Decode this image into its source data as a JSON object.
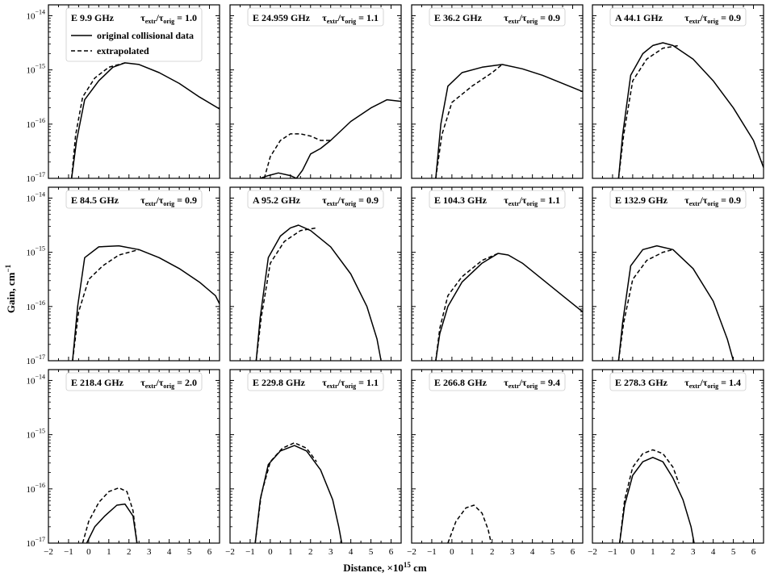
{
  "figure": {
    "ylabel": "Gain, cm",
    "ylabel_sup": "−1",
    "xlabel": "Distance, ×10",
    "xlabel_sup": "15",
    "xlabel_unit": " cm",
    "line_color": "#000000"
  },
  "legend": {
    "original_label": "original collisional data",
    "extrapolated_label": "extrapolated"
  },
  "axes": {
    "xlim": [
      -2,
      6.5
    ],
    "ylim_log10": [
      -17,
      -13.8
    ],
    "x_ticks": [
      "−2",
      "−1",
      "0",
      "1",
      "2",
      "3",
      "4",
      "5",
      "6"
    ],
    "y_ticks": [
      {
        "base": "10",
        "exp": "−14"
      },
      {
        "base": "10",
        "exp": "−15"
      },
      {
        "base": "10",
        "exp": "−16"
      },
      {
        "base": "10",
        "exp": "−17"
      }
    ]
  },
  "chart_data": [
    {
      "type": "line",
      "title_prefix": "E",
      "freq": "9.9 GHz",
      "ratio": "1.0",
      "series": [
        {
          "name": "original collisional data",
          "style": "solid",
          "points": [
            [
              -0.85,
              -17
            ],
            [
              -0.6,
              -16.3
            ],
            [
              -0.2,
              -15.55
            ],
            [
              0.5,
              -15.2
            ],
            [
              1.2,
              -14.95
            ],
            [
              1.8,
              -14.87
            ],
            [
              2.5,
              -14.9
            ],
            [
              3.5,
              -15.05
            ],
            [
              4.5,
              -15.25
            ],
            [
              5.5,
              -15.5
            ],
            [
              6.5,
              -15.72
            ]
          ]
        },
        {
          "name": "extrapolated",
          "style": "dashed",
          "points": [
            [
              -0.85,
              -17
            ],
            [
              -0.65,
              -16.2
            ],
            [
              -0.3,
              -15.5
            ],
            [
              0.3,
              -15.15
            ],
            [
              1.0,
              -14.95
            ],
            [
              1.8,
              -14.87
            ]
          ]
        }
      ]
    },
    {
      "type": "line",
      "title_prefix": "E",
      "freq": "24.959 GHz",
      "ratio": "1.1",
      "series": [
        {
          "name": "original collisional data",
          "style": "solid",
          "points": [
            [
              -0.5,
              -17
            ],
            [
              -0.1,
              -16.95
            ],
            [
              0.4,
              -16.9
            ],
            [
              1.0,
              -16.95
            ],
            [
              1.3,
              -17
            ],
            [
              1.6,
              -16.85
            ],
            [
              2.0,
              -16.55
            ],
            [
              2.5,
              -16.45
            ],
            [
              3.0,
              -16.3
            ],
            [
              4.0,
              -15.95
            ],
            [
              5.0,
              -15.7
            ],
            [
              5.8,
              -15.55
            ],
            [
              6.5,
              -15.58
            ]
          ]
        },
        {
          "name": "extrapolated",
          "style": "dashed",
          "points": [
            [
              -0.3,
              -17
            ],
            [
              0,
              -16.6
            ],
            [
              0.5,
              -16.3
            ],
            [
              1.0,
              -16.18
            ],
            [
              1.5,
              -16.18
            ],
            [
              2.0,
              -16.22
            ],
            [
              2.5,
              -16.3
            ],
            [
              3.0,
              -16.3
            ]
          ]
        }
      ]
    },
    {
      "type": "line",
      "title_prefix": "E",
      "freq": "36.2 GHz",
      "ratio": "0.9",
      "series": [
        {
          "name": "original collisional data",
          "style": "solid",
          "points": [
            [
              -0.8,
              -17
            ],
            [
              -0.55,
              -16
            ],
            [
              -0.2,
              -15.3
            ],
            [
              0.5,
              -15.05
            ],
            [
              1.5,
              -14.95
            ],
            [
              2.5,
              -14.9
            ],
            [
              3.5,
              -14.98
            ],
            [
              4.5,
              -15.1
            ],
            [
              5.5,
              -15.25
            ],
            [
              6.5,
              -15.4
            ]
          ]
        },
        {
          "name": "extrapolated",
          "style": "dashed",
          "points": [
            [
              -0.8,
              -17
            ],
            [
              -0.5,
              -16.2
            ],
            [
              0,
              -15.6
            ],
            [
              1.0,
              -15.3
            ],
            [
              2.0,
              -15.05
            ],
            [
              2.5,
              -14.9
            ]
          ]
        }
      ]
    },
    {
      "type": "line",
      "title_prefix": "A",
      "freq": "44.1 GHz",
      "ratio": "0.9",
      "series": [
        {
          "name": "original collisional data",
          "style": "solid",
          "points": [
            [
              -0.7,
              -17
            ],
            [
              -0.5,
              -16.2
            ],
            [
              -0.1,
              -15.1
            ],
            [
              0.5,
              -14.7
            ],
            [
              1.0,
              -14.55
            ],
            [
              1.5,
              -14.5
            ],
            [
              2.0,
              -14.55
            ],
            [
              3.0,
              -14.8
            ],
            [
              4.0,
              -15.2
            ],
            [
              5.0,
              -15.7
            ],
            [
              6.0,
              -16.3
            ],
            [
              6.5,
              -16.8
            ]
          ]
        },
        {
          "name": "extrapolated",
          "style": "dashed",
          "points": [
            [
              -0.7,
              -17
            ],
            [
              -0.45,
              -16.2
            ],
            [
              0,
              -15.2
            ],
            [
              0.7,
              -14.8
            ],
            [
              1.5,
              -14.6
            ],
            [
              2.3,
              -14.55
            ]
          ]
        }
      ]
    },
    {
      "type": "line",
      "title_prefix": "E",
      "freq": "84.5 GHz",
      "ratio": "0.9",
      "series": [
        {
          "name": "original collisional data",
          "style": "solid",
          "points": [
            [
              -0.8,
              -17
            ],
            [
              -0.55,
              -16
            ],
            [
              -0.2,
              -15.1
            ],
            [
              0.5,
              -14.9
            ],
            [
              1.5,
              -14.88
            ],
            [
              2.5,
              -14.95
            ],
            [
              3.5,
              -15.1
            ],
            [
              4.5,
              -15.3
            ],
            [
              5.5,
              -15.55
            ],
            [
              6.3,
              -15.8
            ],
            [
              6.5,
              -15.95
            ]
          ]
        },
        {
          "name": "extrapolated",
          "style": "dashed",
          "points": [
            [
              -0.8,
              -17
            ],
            [
              -0.5,
              -16.1
            ],
            [
              0,
              -15.5
            ],
            [
              0.7,
              -15.25
            ],
            [
              1.5,
              -15.05
            ],
            [
              2.5,
              -14.95
            ]
          ]
        }
      ]
    },
    {
      "type": "line",
      "title_prefix": "A",
      "freq": "95.2 GHz",
      "ratio": "0.9",
      "series": [
        {
          "name": "original collisional data",
          "style": "solid",
          "points": [
            [
              -0.7,
              -17
            ],
            [
              -0.5,
              -16.2
            ],
            [
              -0.1,
              -15.1
            ],
            [
              0.5,
              -14.7
            ],
            [
              1.0,
              -14.55
            ],
            [
              1.4,
              -14.5
            ],
            [
              2.0,
              -14.6
            ],
            [
              3.0,
              -14.9
            ],
            [
              4.0,
              -15.4
            ],
            [
              4.8,
              -16.0
            ],
            [
              5.3,
              -16.6
            ],
            [
              5.5,
              -17
            ]
          ]
        },
        {
          "name": "extrapolated",
          "style": "dashed",
          "points": [
            [
              -0.7,
              -17
            ],
            [
              -0.45,
              -16.2
            ],
            [
              0,
              -15.2
            ],
            [
              0.7,
              -14.8
            ],
            [
              1.5,
              -14.6
            ],
            [
              2.3,
              -14.55
            ]
          ]
        }
      ]
    },
    {
      "type": "line",
      "title_prefix": "E",
      "freq": "104.3 GHz",
      "ratio": "1.1",
      "series": [
        {
          "name": "original collisional data",
          "style": "solid",
          "points": [
            [
              -0.8,
              -17
            ],
            [
              -0.6,
              -16.5
            ],
            [
              -0.2,
              -16.0
            ],
            [
              0.5,
              -15.55
            ],
            [
              1.5,
              -15.2
            ],
            [
              2.3,
              -15.02
            ],
            [
              2.8,
              -15.05
            ],
            [
              3.5,
              -15.2
            ],
            [
              4.5,
              -15.5
            ],
            [
              5.5,
              -15.8
            ],
            [
              6.5,
              -16.1
            ]
          ]
        },
        {
          "name": "extrapolated",
          "style": "dashed",
          "points": [
            [
              -0.8,
              -17
            ],
            [
              -0.6,
              -16.4
            ],
            [
              -0.2,
              -15.8
            ],
            [
              0.5,
              -15.45
            ],
            [
              1.5,
              -15.15
            ],
            [
              2.3,
              -15.02
            ]
          ]
        }
      ]
    },
    {
      "type": "line",
      "title_prefix": "E",
      "freq": "132.9 GHz",
      "ratio": "0.9",
      "series": [
        {
          "name": "original collisional data",
          "style": "solid",
          "points": [
            [
              -0.7,
              -17
            ],
            [
              -0.5,
              -16.3
            ],
            [
              -0.1,
              -15.25
            ],
            [
              0.5,
              -14.95
            ],
            [
              1.2,
              -14.88
            ],
            [
              2.0,
              -14.95
            ],
            [
              3.0,
              -15.3
            ],
            [
              4.0,
              -15.9
            ],
            [
              4.7,
              -16.6
            ],
            [
              5.0,
              -17
            ]
          ]
        },
        {
          "name": "extrapolated",
          "style": "dashed",
          "points": [
            [
              -0.7,
              -17
            ],
            [
              -0.45,
              -16.3
            ],
            [
              0,
              -15.5
            ],
            [
              0.7,
              -15.15
            ],
            [
              1.5,
              -15.0
            ],
            [
              2.0,
              -14.95
            ]
          ]
        }
      ]
    },
    {
      "type": "line",
      "title_prefix": "E",
      "freq": "218.4 GHz",
      "ratio": "2.0",
      "series": [
        {
          "name": "original collisional data",
          "style": "solid",
          "points": [
            [
              -0.1,
              -17
            ],
            [
              0.3,
              -16.7
            ],
            [
              0.8,
              -16.5
            ],
            [
              1.4,
              -16.3
            ],
            [
              1.8,
              -16.28
            ],
            [
              2.2,
              -16.5
            ],
            [
              2.4,
              -17
            ]
          ]
        },
        {
          "name": "extrapolated",
          "style": "dashed",
          "points": [
            [
              -0.3,
              -17
            ],
            [
              0,
              -16.6
            ],
            [
              0.5,
              -16.25
            ],
            [
              1.0,
              -16.05
            ],
            [
              1.5,
              -15.98
            ],
            [
              1.9,
              -16.05
            ],
            [
              2.2,
              -16.4
            ],
            [
              2.4,
              -17
            ]
          ]
        }
      ]
    },
    {
      "type": "line",
      "title_prefix": "E",
      "freq": "229.8 GHz",
      "ratio": "1.1",
      "series": [
        {
          "name": "original collisional data",
          "style": "solid",
          "points": [
            [
              -0.75,
              -17
            ],
            [
              -0.5,
              -16.2
            ],
            [
              -0.1,
              -15.55
            ],
            [
              0.5,
              -15.3
            ],
            [
              1.2,
              -15.2
            ],
            [
              1.8,
              -15.3
            ],
            [
              2.5,
              -15.65
            ],
            [
              3.1,
              -16.2
            ],
            [
              3.4,
              -16.7
            ],
            [
              3.55,
              -17
            ]
          ]
        },
        {
          "name": "extrapolated",
          "style": "dashed",
          "points": [
            [
              -0.75,
              -17
            ],
            [
              -0.45,
              -16.1
            ],
            [
              0,
              -15.5
            ],
            [
              0.6,
              -15.25
            ],
            [
              1.2,
              -15.15
            ],
            [
              1.8,
              -15.25
            ],
            [
              2.3,
              -15.5
            ]
          ]
        }
      ]
    },
    {
      "type": "line",
      "title_prefix": "E",
      "freq": "266.8 GHz",
      "ratio": "9.4",
      "series": [
        {
          "name": "extrapolated",
          "style": "dashed",
          "points": [
            [
              -0.2,
              -17
            ],
            [
              0.2,
              -16.6
            ],
            [
              0.7,
              -16.35
            ],
            [
              1.1,
              -16.3
            ],
            [
              1.5,
              -16.45
            ],
            [
              1.8,
              -16.75
            ],
            [
              1.95,
              -17
            ]
          ]
        }
      ]
    },
    {
      "type": "line",
      "title_prefix": "E",
      "freq": "278.3 GHz",
      "ratio": "1.4",
      "series": [
        {
          "name": "original collisional data",
          "style": "solid",
          "points": [
            [
              -0.65,
              -17
            ],
            [
              -0.4,
              -16.3
            ],
            [
              0,
              -15.75
            ],
            [
              0.5,
              -15.5
            ],
            [
              1.0,
              -15.42
            ],
            [
              1.5,
              -15.5
            ],
            [
              2.0,
              -15.8
            ],
            [
              2.5,
              -16.2
            ],
            [
              2.9,
              -16.7
            ],
            [
              3.05,
              -17
            ]
          ]
        },
        {
          "name": "extrapolated",
          "style": "dashed",
          "points": [
            [
              -0.65,
              -17
            ],
            [
              -0.4,
              -16.2
            ],
            [
              0,
              -15.6
            ],
            [
              0.5,
              -15.35
            ],
            [
              1.0,
              -15.28
            ],
            [
              1.5,
              -15.35
            ],
            [
              2.0,
              -15.6
            ],
            [
              2.3,
              -15.9
            ]
          ]
        }
      ]
    }
  ]
}
